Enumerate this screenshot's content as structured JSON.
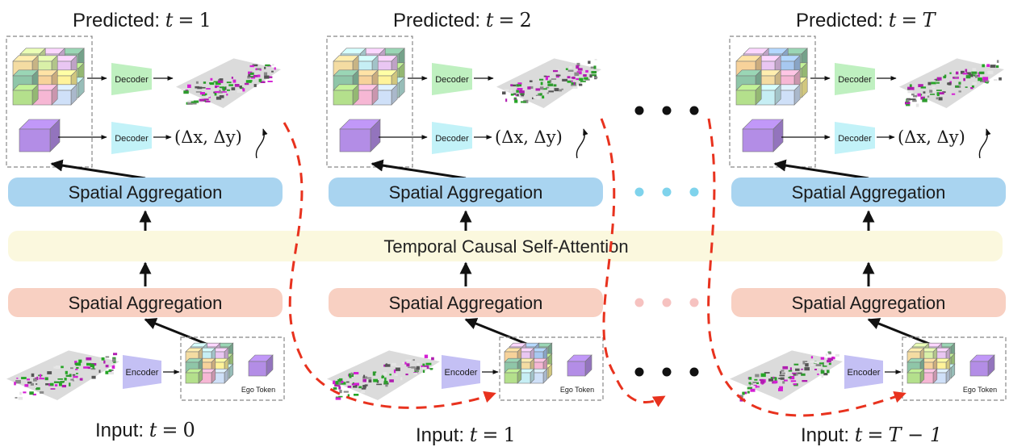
{
  "temporal_bar": {
    "label": "Temporal Causal Self-Attention",
    "color": "#fbf8de"
  },
  "colors": {
    "spatial_top": "#a9d4f0",
    "spatial_bottom": "#f8d0c2",
    "decoder": "#bff0c0",
    "decoder_ego": "#c2f2f8",
    "encoder": "#c4c0f4",
    "ego_token": "#b38de6",
    "dashed_arrow": "#e8321e",
    "dots_cyan": "#7fd3ec",
    "dots_pink": "#f6c2c0"
  },
  "columns": [
    {
      "predicted_prefix": "Predicted:",
      "predicted_var": "t",
      "predicted_eq": "=",
      "predicted_val": "1",
      "decoder_label": "Decoder",
      "decoder2_label": "Decoder",
      "delta_text": "(Δx, Δy)",
      "spatial_top_label": "Spatial Aggregation",
      "spatial_bottom_label": "Spatial Aggregation",
      "encoder_label": "Encoder",
      "ego_label": "Ego Token",
      "input_prefix": "Input:",
      "input_var": "t",
      "input_eq": "=",
      "input_val": "0"
    },
    {
      "predicted_prefix": "Predicted:",
      "predicted_var": "t",
      "predicted_eq": "=",
      "predicted_val": "2",
      "decoder_label": "Decoder",
      "decoder2_label": "Decoder",
      "delta_text": "(Δx, Δy)",
      "spatial_top_label": "Spatial Aggregation",
      "spatial_bottom_label": "Spatial Aggregation",
      "encoder_label": "Encoder",
      "ego_label": "Ego Token",
      "input_prefix": "Input:",
      "input_var": "t",
      "input_eq": "=",
      "input_val": "1"
    },
    {
      "predicted_prefix": "Predicted:",
      "predicted_var": "t",
      "predicted_eq": "=",
      "predicted_val": "T",
      "decoder_label": "Decoder",
      "decoder2_label": "Decoder",
      "delta_text": "(Δx, Δy)",
      "spatial_top_label": "Spatial Aggregation",
      "spatial_bottom_label": "Spatial Aggregation",
      "encoder_label": "Encoder",
      "ego_label": "Ego Token",
      "input_prefix": "Input:",
      "input_var": "t",
      "input_eq": "=",
      "input_val": "T − 1"
    }
  ]
}
